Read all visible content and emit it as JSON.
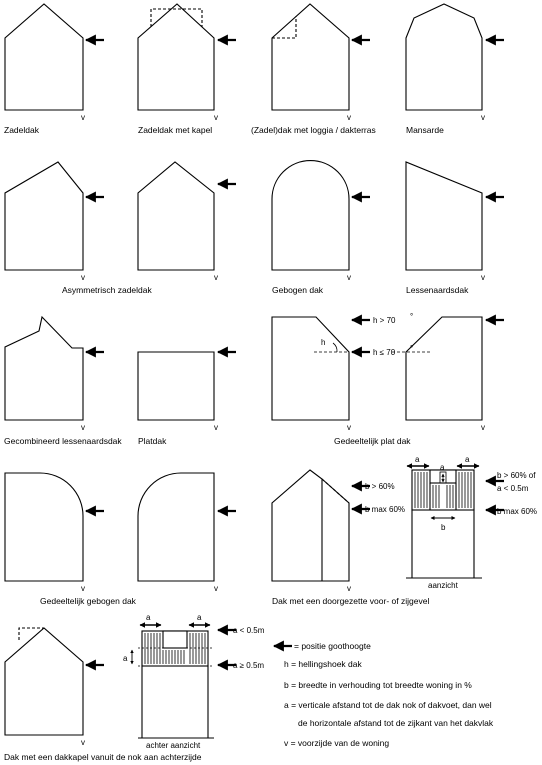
{
  "roof_types": {
    "zadeldak": "Zadeldak",
    "zadeldak_kapel": "Zadeldak met kapel",
    "loggia": "(Zadel)dak met loggia / dakterras",
    "mansarde": "Mansarde",
    "asym": "Asymmetrisch zadeldak",
    "gebogen": "Gebogen dak",
    "lessenaar": "Lessenaardsdak",
    "gecomb": "Gecombineerd lessenaardsdak",
    "platdak": "Platdak",
    "gedeeltelijk_plat": "Gedeeltelijk plat dak",
    "gedeeltelijk_gebogen": "Gedeeltelijk gebogen dak",
    "doorgezet": "Dak met een doorgezette voor- of zijgevel",
    "dakkapel_nok": "Dak met een dakkapel vanuit de nok aan achterzijde"
  },
  "annotations": {
    "v": "v",
    "h_gt_70": "h > 70",
    "h_le_70": "h ≤ 70",
    "degree": "°",
    "h": "h",
    "b_gt_60": "b > 60%",
    "b_max_60": "b max 60%",
    "b_gt_60_of": "b > 60% of",
    "a_lt_05": "a < 0.5m",
    "a_ge_05": "a ≥ 0.5m",
    "a": "a",
    "b": "b",
    "aanzicht": "aanzicht",
    "achter_aanzicht": "achter aanzicht"
  },
  "legend": {
    "positie": "= positie goothoogte",
    "h_def": "h = hellingshoek dak",
    "b_def": "b = breedte in verhouding tot breedte woning in %",
    "a_def1": "a = verticale afstand tot de dak nok of dakvoet, dan wel",
    "a_def2": "de horizontale afstand tot de zijkant van het dakvlak",
    "v_def": "v = voorzijde van de woning"
  }
}
